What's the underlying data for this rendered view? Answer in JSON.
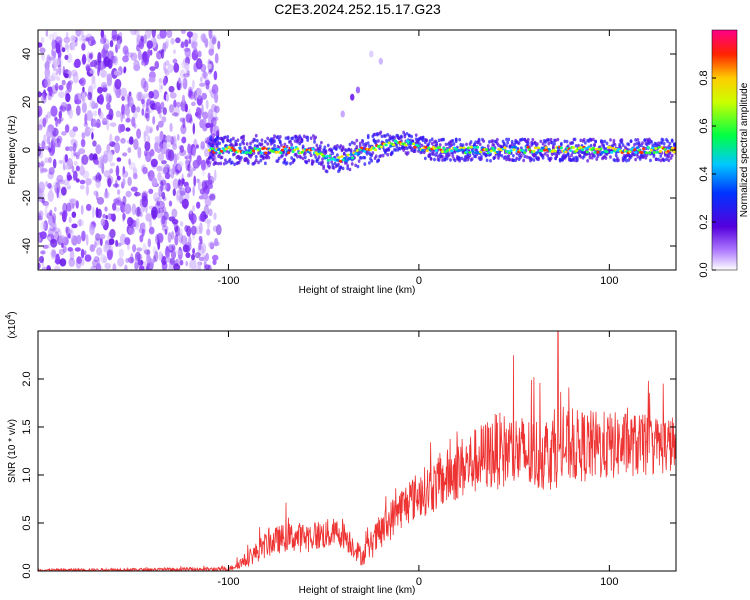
{
  "title": "C2E3.2024.252.15.17.G23",
  "colors": {
    "snr_line": "#ee3333",
    "axis": "#000000"
  },
  "chart_data": [
    {
      "type": "heatmap",
      "xlabel": "Height of straight line (km)",
      "ylabel": "Frequency (Hz)",
      "xlim": [
        -200,
        135
      ],
      "ylim": [
        -50,
        50
      ],
      "x_ticks": [
        -100,
        0,
        100
      ],
      "x_tick_labels": [
        "-100",
        "0",
        "100"
      ],
      "y_ticks": [
        -40,
        -20,
        0,
        20,
        40
      ],
      "y_tick_labels": [
        "-40",
        "-20",
        "0",
        "20",
        "40"
      ],
      "colorbar": {
        "label": "Normalized spectral amplitude",
        "range": [
          0,
          1
        ],
        "ticks": [
          0.0,
          0.2,
          0.4,
          0.6,
          0.8
        ],
        "tick_labels": [
          "0.0",
          "0.2",
          "0.4",
          "0.6",
          "0.8"
        ],
        "colormap": "rainbow (white-violet-blue-cyan-green-yellow-red-magenta)"
      },
      "features": {
        "noise_region_x": [
          -200,
          -105
        ],
        "ridge_frequency_hz": 0,
        "ridge_start_x": -110,
        "ridge_end_x": 135,
        "secondary_blob": {
          "x": -35,
          "freq_hz": 22
        }
      },
      "grid": false
    },
    {
      "type": "line",
      "xlabel": "Height of straight line (km)",
      "ylabel": "SNR (10 * v/v)",
      "y_scale_label": "(x10",
      "y_scale_exp": "4",
      "y_scale_suffix": ")",
      "xlim": [
        -200,
        135
      ],
      "ylim": [
        0,
        2.5
      ],
      "x_ticks": [
        -100,
        0,
        100
      ],
      "x_tick_labels": [
        "-100",
        "0",
        "100"
      ],
      "y_ticks": [
        0,
        0.5,
        1.0,
        1.5,
        2.0
      ],
      "y_tick_labels": [
        "0.0",
        "0.5",
        "1.0",
        "1.5",
        "2.0"
      ],
      "series": [
        {
          "envelope_x": [
            -200,
            -100,
            -90,
            -80,
            -70,
            -60,
            -50,
            -40,
            -30,
            -20,
            -10,
            0,
            10,
            20,
            30,
            40,
            50,
            60,
            70,
            80,
            90,
            100,
            110,
            120,
            135
          ],
          "envelope_mean": [
            0.01,
            0.02,
            0.12,
            0.28,
            0.35,
            0.35,
            0.38,
            0.4,
            0.15,
            0.4,
            0.65,
            0.8,
            0.9,
            1.05,
            1.15,
            1.25,
            1.25,
            1.2,
            1.25,
            1.3,
            1.3,
            1.3,
            1.32,
            1.3,
            1.32
          ],
          "envelope_spread": [
            0.01,
            0.02,
            0.08,
            0.14,
            0.15,
            0.16,
            0.16,
            0.16,
            0.1,
            0.2,
            0.22,
            0.25,
            0.28,
            0.32,
            0.35,
            0.4,
            0.4,
            0.4,
            0.4,
            0.38,
            0.38,
            0.36,
            0.34,
            0.32,
            0.3
          ],
          "peak_value": 2.5,
          "peak_x": 73
        }
      ],
      "grid": false
    }
  ]
}
